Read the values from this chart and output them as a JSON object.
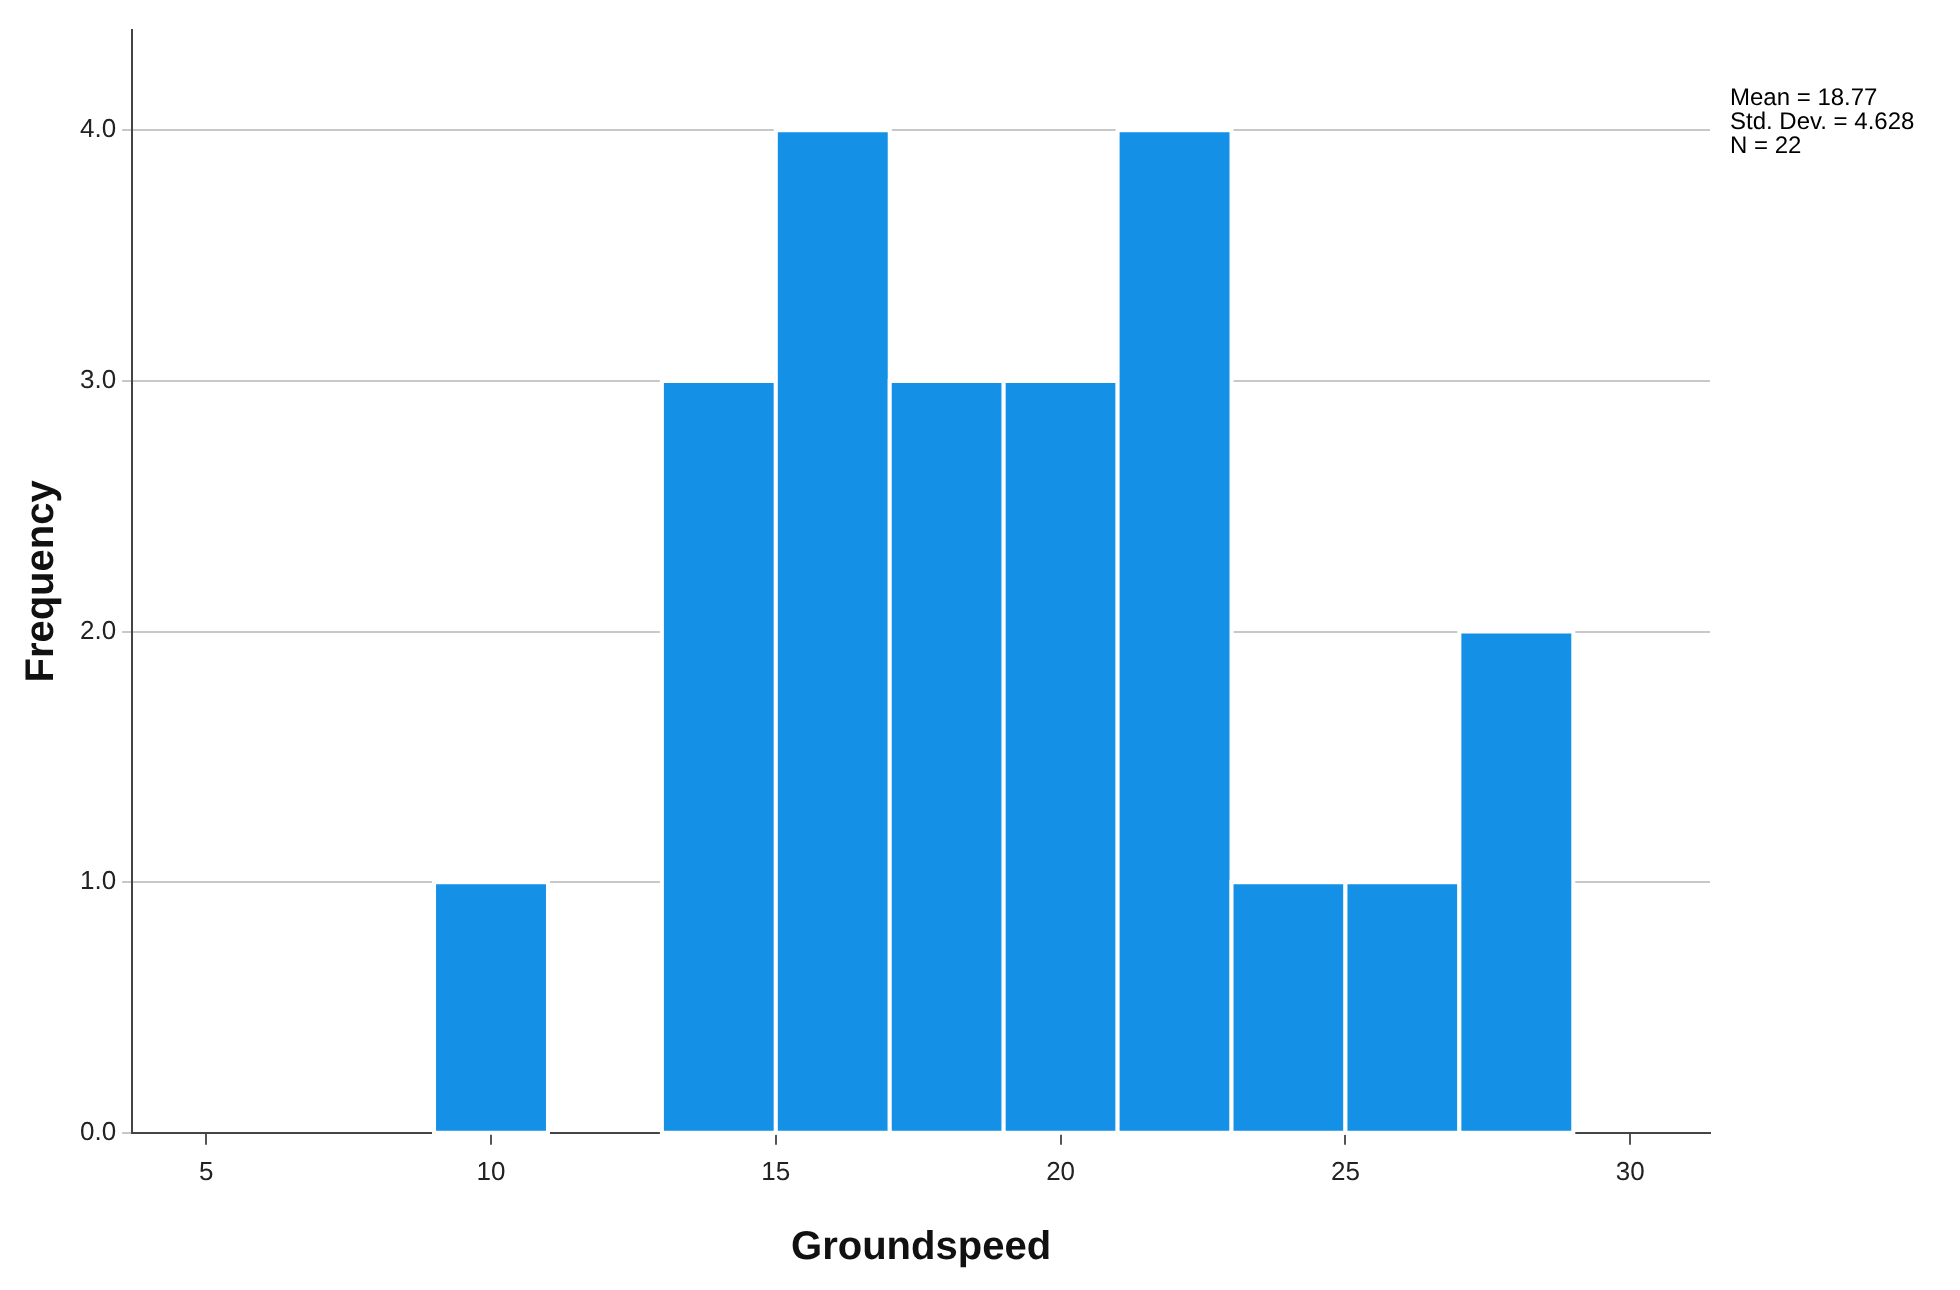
{
  "chart_data": {
    "type": "histogram",
    "xlabel": "Groundspeed",
    "ylabel": "Frequency",
    "bins": [
      9,
      11,
      13,
      15,
      17,
      19,
      21,
      23,
      25,
      27,
      29
    ],
    "values": [
      1,
      0,
      3,
      4,
      3,
      3,
      4,
      1,
      1,
      2
    ],
    "color": "#1490e6",
    "xlim": [
      3.7,
      31.4
    ],
    "xticks": [
      5,
      10,
      15,
      20,
      25,
      30
    ],
    "ylim": [
      0,
      4.4
    ],
    "yticks": [
      {
        "value": 0,
        "label": "0.0"
      },
      {
        "value": 1,
        "label": "1.0"
      },
      {
        "value": 2,
        "label": "2.0"
      },
      {
        "value": 3,
        "label": "3.0"
      },
      {
        "value": 4,
        "label": "4.0"
      }
    ],
    "grid": "y",
    "annotations": [
      "Mean = 18.77",
      "Std. Dev. = 4.628",
      "N = 22"
    ]
  }
}
